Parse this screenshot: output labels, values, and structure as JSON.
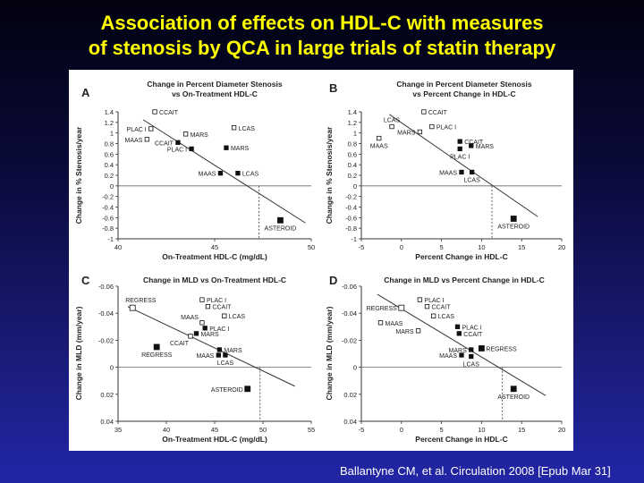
{
  "slide": {
    "title_line1": "Association of effects on HDL-C with measures",
    "title_line2": "of stenosis by QCA in large trials of statin therapy",
    "citation": "Ballantyne CM, et al. Circulation 2008 [Epub Mar 31]"
  },
  "colors": {
    "title": "#ffff00",
    "marker": "#111111",
    "line": "#333333"
  },
  "chart_data": [
    {
      "type": "scatter",
      "panel_letter": "A",
      "title": "Change in Percent Diameter Stenosis\nvs On-Treatment HDL-C",
      "xlabel": "On-Treatment HDL-C (mg/dL)",
      "ylabel": "Change in % Stenosis/year",
      "xlim": [
        40,
        50
      ],
      "ylim": [
        -1,
        1.4
      ],
      "xticks": [
        40,
        45,
        50
      ],
      "yticks": [
        1.4,
        1.2,
        1,
        0.8,
        0.6,
        0.4,
        0.2,
        0,
        -0.2,
        -0.4,
        -0.6,
        -0.8,
        -1
      ],
      "y_reversed": false,
      "zero_line": 0,
      "regression": [
        [
          41.3,
          1.25
        ],
        [
          49.7,
          -0.7
        ]
      ],
      "intercept_x": 47.3,
      "points": [
        {
          "label": "CCAIT",
          "x": 41.9,
          "y": 1.4,
          "filled": false,
          "label_pos": "right"
        },
        {
          "label": "PLAC I",
          "x": 41.7,
          "y": 1.08,
          "filled": false,
          "label_pos": "left"
        },
        {
          "label": "MARS",
          "x": 43.5,
          "y": 0.98,
          "filled": false,
          "label_pos": "right"
        },
        {
          "label": "LCAS",
          "x": 46.0,
          "y": 1.1,
          "filled": false,
          "label_pos": "right"
        },
        {
          "label": "MAAS",
          "x": 41.5,
          "y": 0.88,
          "filled": false,
          "label_pos": "left"
        },
        {
          "label": "CCAIT",
          "x": 43.1,
          "y": 0.82,
          "filled": true,
          "label_pos": "left"
        },
        {
          "label": "PLAC I",
          "x": 43.8,
          "y": 0.7,
          "filled": true,
          "label_pos": "left"
        },
        {
          "label": "MARS",
          "x": 45.6,
          "y": 0.72,
          "filled": true,
          "label_pos": "right"
        },
        {
          "label": "MAAS",
          "x": 45.3,
          "y": 0.24,
          "filled": true,
          "label_pos": "left"
        },
        {
          "label": "LCAS",
          "x": 46.2,
          "y": 0.24,
          "filled": true,
          "label_pos": "right"
        },
        {
          "label": "ASTEROID",
          "x": 48.4,
          "y": -0.65,
          "filled": true,
          "label_pos": "below"
        }
      ]
    },
    {
      "type": "scatter",
      "panel_letter": "B",
      "title": "Change in Percent Diameter Stenosis\nvs Percent Change in HDL-C",
      "xlabel": "Percent Change in HDL-C",
      "ylabel": "Change in % Stenosis/year",
      "xlim": [
        -5,
        20
      ],
      "ylim": [
        -1,
        1.4
      ],
      "xticks": [
        -5,
        0,
        5,
        10,
        15,
        20
      ],
      "yticks": [
        1.4,
        1.2,
        1,
        0.8,
        0.6,
        0.4,
        0.2,
        0,
        -0.2,
        -0.4,
        -0.6,
        -0.8,
        -1
      ],
      "y_reversed": false,
      "zero_line": 0,
      "regression": [
        [
          -1.5,
          1.35
        ],
        [
          17,
          -0.58
        ]
      ],
      "intercept_x": 11.3,
      "points": [
        {
          "label": "CCAIT",
          "x": 2.8,
          "y": 1.4,
          "filled": false,
          "label_pos": "right"
        },
        {
          "label": "LCAS",
          "x": -1.2,
          "y": 1.12,
          "filled": false,
          "label_pos": "above"
        },
        {
          "label": "PLAC I",
          "x": 3.8,
          "y": 1.12,
          "filled": false,
          "label_pos": "right"
        },
        {
          "label": "MARS",
          "x": 2.3,
          "y": 1.02,
          "filled": false,
          "label_pos": "left"
        },
        {
          "label": "MAAS",
          "x": -2.8,
          "y": 0.9,
          "filled": false,
          "label_pos": "below"
        },
        {
          "label": "CCAIT",
          "x": 7.3,
          "y": 0.84,
          "filled": true,
          "label_pos": "right"
        },
        {
          "label": "MARS",
          "x": 8.7,
          "y": 0.76,
          "filled": true,
          "label_pos": "right"
        },
        {
          "label": "PLAC I",
          "x": 7.3,
          "y": 0.7,
          "filled": true,
          "label_pos": "below"
        },
        {
          "label": "MAAS",
          "x": 7.5,
          "y": 0.26,
          "filled": true,
          "label_pos": "left"
        },
        {
          "label": "LCAS",
          "x": 8.8,
          "y": 0.26,
          "filled": true,
          "label_pos": "below"
        },
        {
          "label": "ASTEROID",
          "x": 14.0,
          "y": -0.62,
          "filled": true,
          "label_pos": "below"
        }
      ]
    },
    {
      "type": "scatter",
      "panel_letter": "C",
      "title": "Change in MLD vs On-Treatment HDL-C",
      "xlabel": "On-Treatment HDL-C (mg/dL)",
      "ylabel": "Change in MLD (mm/year)",
      "xlim": [
        35,
        55
      ],
      "ylim": [
        -0.06,
        0.04
      ],
      "xticks": [
        35,
        40,
        45,
        50,
        55
      ],
      "yticks": [
        -0.06,
        -0.04,
        -0.02,
        0,
        0.02,
        0.04
      ],
      "ytick_labels": [
        "-0.06",
        "-0.04",
        "-0.02",
        "0",
        "0.02",
        "0.04"
      ],
      "y_reversed": true,
      "zero_line": 0,
      "regression": [
        [
          36,
          -0.045
        ],
        [
          53.3,
          0.014
        ]
      ],
      "intercept_x": 49.7,
      "points": [
        {
          "label": "REGRESS",
          "x": 36.5,
          "y": -0.044,
          "filled": false,
          "label_pos": "above-right"
        },
        {
          "label": "PLAC I",
          "x": 43.7,
          "y": -0.05,
          "filled": false,
          "label_pos": "right"
        },
        {
          "label": "CCAIT",
          "x": 44.3,
          "y": -0.045,
          "filled": false,
          "label_pos": "right"
        },
        {
          "label": "MAAS",
          "x": 43.7,
          "y": -0.033,
          "filled": false,
          "label_pos": "above-left"
        },
        {
          "label": "LCAS",
          "x": 46.0,
          "y": -0.038,
          "filled": false,
          "label_pos": "right"
        },
        {
          "label": "PLAC I",
          "x": 44.0,
          "y": -0.029,
          "filled": true,
          "label_pos": "right"
        },
        {
          "label": "MARS",
          "x": 43.1,
          "y": -0.025,
          "filled": true,
          "label_pos": "right"
        },
        {
          "label": "CCAIT",
          "x": 42.5,
          "y": -0.023,
          "filled": false,
          "label_pos": "below-left"
        },
        {
          "label": "REGRESS",
          "x": 39.0,
          "y": -0.015,
          "filled": true,
          "label_pos": "below"
        },
        {
          "label": "MARS",
          "x": 45.5,
          "y": -0.013,
          "filled": true,
          "label_pos": "right"
        },
        {
          "label": "MAAS",
          "x": 45.4,
          "y": -0.009,
          "filled": true,
          "label_pos": "left"
        },
        {
          "label": "LCAS",
          "x": 46.1,
          "y": -0.009,
          "filled": true,
          "label_pos": "below"
        },
        {
          "label": "ASTEROID",
          "x": 48.4,
          "y": 0.016,
          "filled": true,
          "label_pos": "left"
        }
      ]
    },
    {
      "type": "scatter",
      "panel_letter": "D",
      "title": "Change in MLD vs Percent Change in HDL-C",
      "xlabel": "Percent Change in HDL-C",
      "ylabel": "Change in MLD (mm/year)",
      "xlim": [
        -5,
        20
      ],
      "ylim": [
        -0.06,
        0.04
      ],
      "xticks": [
        -5,
        0,
        5,
        10,
        15,
        20
      ],
      "yticks": [
        -0.06,
        -0.04,
        -0.02,
        0,
        0.02,
        0.04
      ],
      "ytick_labels": [
        "-0.06",
        "-0.04",
        "-0.02",
        "0",
        "0.02",
        "0.04"
      ],
      "y_reversed": true,
      "zero_line": 0,
      "regression": [
        [
          -3,
          -0.054
        ],
        [
          18,
          0.021
        ]
      ],
      "intercept_x": 12.6,
      "points": [
        {
          "label": "PLAC I",
          "x": 2.3,
          "y": -0.05,
          "filled": false,
          "label_pos": "right"
        },
        {
          "label": "REGRESS",
          "x": 0.0,
          "y": -0.044,
          "filled": false,
          "label_pos": "left"
        },
        {
          "label": "CCAIT",
          "x": 3.2,
          "y": -0.045,
          "filled": false,
          "label_pos": "right"
        },
        {
          "label": "LCAS",
          "x": 4.0,
          "y": -0.038,
          "filled": false,
          "label_pos": "right"
        },
        {
          "label": "MAAS",
          "x": -2.6,
          "y": -0.033,
          "filled": false,
          "label_pos": "right"
        },
        {
          "label": "MARS",
          "x": 2.1,
          "y": -0.027,
          "filled": false,
          "label_pos": "left"
        },
        {
          "label": "PLAC I",
          "x": 7.0,
          "y": -0.03,
          "filled": true,
          "label_pos": "right"
        },
        {
          "label": "CCAIT",
          "x": 7.2,
          "y": -0.025,
          "filled": true,
          "label_pos": "right"
        },
        {
          "label": "MARS",
          "x": 8.7,
          "y": -0.013,
          "filled": true,
          "label_pos": "left"
        },
        {
          "label": "REGRESS",
          "x": 10.0,
          "y": -0.014,
          "filled": true,
          "label_pos": "right"
        },
        {
          "label": "MAAS",
          "x": 7.5,
          "y": -0.009,
          "filled": true,
          "label_pos": "left"
        },
        {
          "label": "LCAS",
          "x": 8.7,
          "y": -0.008,
          "filled": true,
          "label_pos": "below"
        },
        {
          "label": "ASTEROID",
          "x": 14.0,
          "y": 0.016,
          "filled": true,
          "label_pos": "below"
        }
      ]
    }
  ]
}
